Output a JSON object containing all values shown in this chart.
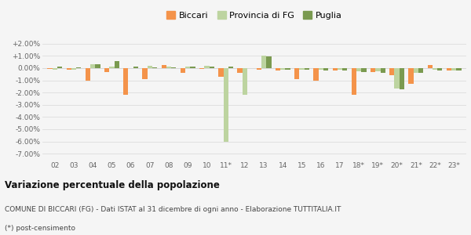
{
  "categories": [
    "02",
    "03",
    "04",
    "05",
    "06",
    "07",
    "08",
    "09",
    "10",
    "11*",
    "12",
    "13",
    "14",
    "15",
    "16",
    "17",
    "18*",
    "19*",
    "20*",
    "21*",
    "22*",
    "23*"
  ],
  "biccari": [
    -0.05,
    -0.15,
    -1.0,
    -0.3,
    -2.15,
    -0.9,
    0.25,
    -0.4,
    -0.05,
    -0.7,
    -0.4,
    -0.1,
    -0.2,
    -0.9,
    -1.0,
    -0.2,
    -2.15,
    -0.3,
    -0.6,
    -1.3,
    0.25,
    -0.2
  ],
  "provincia_fg": [
    -0.1,
    -0.1,
    0.35,
    0.1,
    0.0,
    0.2,
    0.15,
    0.1,
    0.2,
    -6.0,
    -2.2,
    1.05,
    -0.15,
    -0.15,
    -0.15,
    -0.15,
    -0.25,
    -0.25,
    -1.65,
    -0.4,
    -0.15,
    -0.2
  ],
  "puglia": [
    0.1,
    0.05,
    0.35,
    0.6,
    0.15,
    0.05,
    0.05,
    0.15,
    0.15,
    0.15,
    0.0,
    0.95,
    -0.1,
    -0.1,
    -0.2,
    -0.2,
    -0.35,
    -0.4,
    -1.75,
    -0.4,
    -0.2,
    -0.2
  ],
  "color_biccari": "#f4934a",
  "color_provincia": "#bdd4a0",
  "color_puglia": "#7a9a50",
  "ylim": [
    -7.5,
    2.5
  ],
  "yticks": [
    2.0,
    1.0,
    0.0,
    -1.0,
    -2.0,
    -3.0,
    -4.0,
    -5.0,
    -6.0,
    -7.0
  ],
  "title": "Variazione percentuale della popolazione",
  "subtitle": "COMUNE DI BICCARI (FG) - Dati ISTAT al 31 dicembre di ogni anno - Elaborazione TUTTITALIA.IT",
  "footnote": "(*) post-censimento",
  "legend_labels": [
    "Biccari",
    "Provincia di FG",
    "Puglia"
  ],
  "bg_color": "#f5f5f5",
  "grid_color": "#dddddd"
}
